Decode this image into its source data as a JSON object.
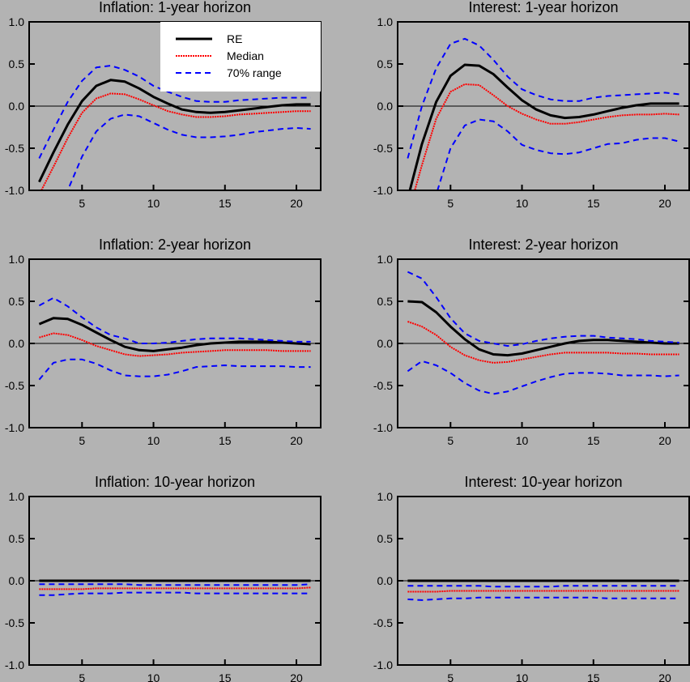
{
  "figure": {
    "background": "#b3b3b3",
    "legend": {
      "placement": "top-right of first panel",
      "entries": [
        {
          "label": "RE",
          "color": "#000000",
          "style": "solid"
        },
        {
          "label": "Median",
          "color": "#ff0000",
          "style": "dotted"
        },
        {
          "label": "70% range",
          "color": "#0000ff",
          "style": "dashed"
        }
      ]
    }
  },
  "chart_data": [
    {
      "type": "line",
      "title": "Inflation: 1-year horizon",
      "xlabel": "",
      "ylabel": "",
      "xlim": [
        1.3,
        21.7
      ],
      "ylim": [
        -1.0,
        1.0
      ],
      "xticks": [
        5,
        10,
        15,
        20
      ],
      "yticks": [
        "1.0",
        "0.5",
        "0.0",
        "-0.5",
        "-1.0"
      ],
      "zero_line": true,
      "x": [
        2,
        3,
        4,
        5,
        6,
        7,
        8,
        9,
        10,
        11,
        12,
        13,
        14,
        15,
        16,
        17,
        18,
        19,
        20,
        21
      ],
      "series": [
        {
          "name": "RE",
          "values": [
            -0.9,
            -0.55,
            -0.22,
            0.06,
            0.24,
            0.31,
            0.29,
            0.21,
            0.11,
            0.03,
            -0.04,
            -0.07,
            -0.08,
            -0.07,
            -0.05,
            -0.03,
            -0.01,
            0.01,
            0.02,
            0.02
          ]
        },
        {
          "name": "Median",
          "values": [
            -1.05,
            -0.72,
            -0.38,
            -0.08,
            0.09,
            0.15,
            0.14,
            0.08,
            0.01,
            -0.06,
            -0.1,
            -0.13,
            -0.13,
            -0.12,
            -0.1,
            -0.09,
            -0.08,
            -0.07,
            -0.06,
            -0.06
          ]
        },
        {
          "name": "70% range upper",
          "values": [
            -0.62,
            -0.28,
            0.05,
            0.3,
            0.46,
            0.48,
            0.43,
            0.35,
            0.24,
            0.17,
            0.11,
            0.06,
            0.05,
            0.05,
            0.07,
            0.08,
            0.09,
            0.1,
            0.1,
            0.1
          ]
        },
        {
          "name": "70% range lower",
          "values": [
            -1.4,
            -1.2,
            -1.0,
            -0.6,
            -0.3,
            -0.15,
            -0.1,
            -0.12,
            -0.2,
            -0.28,
            -0.34,
            -0.37,
            -0.37,
            -0.36,
            -0.34,
            -0.31,
            -0.29,
            -0.27,
            -0.26,
            -0.27
          ]
        }
      ]
    },
    {
      "type": "line",
      "title": "Interest: 1-year horizon",
      "xlabel": "",
      "ylabel": "",
      "xlim": [
        1.3,
        21.7
      ],
      "ylim": [
        -1.0,
        1.0
      ],
      "xticks": [
        5,
        10,
        15,
        20
      ],
      "yticks": [
        "1.0",
        "0.5",
        "0.0",
        "-0.5",
        "-1.0"
      ],
      "zero_line": true,
      "x": [
        2,
        3,
        4,
        5,
        6,
        7,
        8,
        9,
        10,
        11,
        12,
        13,
        14,
        15,
        16,
        17,
        18,
        19,
        20,
        21
      ],
      "series": [
        {
          "name": "RE",
          "values": [
            -1.1,
            -0.45,
            0.05,
            0.36,
            0.49,
            0.48,
            0.38,
            0.22,
            0.07,
            -0.04,
            -0.11,
            -0.14,
            -0.13,
            -0.1,
            -0.06,
            -0.02,
            0.01,
            0.03,
            0.03,
            0.03
          ]
        },
        {
          "name": "Median",
          "values": [
            -1.3,
            -0.7,
            -0.15,
            0.17,
            0.26,
            0.25,
            0.13,
            0.0,
            -0.09,
            -0.16,
            -0.21,
            -0.21,
            -0.19,
            -0.16,
            -0.13,
            -0.11,
            -0.1,
            -0.1,
            -0.09,
            -0.1
          ]
        },
        {
          "name": "70% range upper",
          "values": [
            -0.62,
            0.0,
            0.45,
            0.74,
            0.8,
            0.72,
            0.55,
            0.35,
            0.2,
            0.13,
            0.08,
            0.06,
            0.06,
            0.1,
            0.12,
            0.13,
            0.14,
            0.15,
            0.16,
            0.14
          ]
        },
        {
          "name": "70% range lower",
          "values": [
            -1.6,
            -1.3,
            -1.05,
            -0.5,
            -0.23,
            -0.16,
            -0.18,
            -0.3,
            -0.46,
            -0.52,
            -0.56,
            -0.57,
            -0.55,
            -0.5,
            -0.45,
            -0.44,
            -0.4,
            -0.38,
            -0.38,
            -0.42
          ]
        }
      ]
    },
    {
      "type": "line",
      "title": "Inflation: 2-year horizon",
      "xlabel": "",
      "ylabel": "",
      "xlim": [
        1.3,
        21.7
      ],
      "ylim": [
        -1.0,
        1.0
      ],
      "xticks": [
        5,
        10,
        15,
        20
      ],
      "yticks": [
        "1.0",
        "0.5",
        "0.0",
        "-0.5",
        "-1.0"
      ],
      "zero_line": true,
      "x": [
        2,
        3,
        4,
        5,
        6,
        7,
        8,
        9,
        10,
        11,
        12,
        13,
        14,
        15,
        16,
        17,
        18,
        19,
        20,
        21
      ],
      "series": [
        {
          "name": "RE",
          "values": [
            0.23,
            0.3,
            0.29,
            0.22,
            0.13,
            0.04,
            -0.04,
            -0.08,
            -0.09,
            -0.07,
            -0.05,
            -0.02,
            0.0,
            0.01,
            0.02,
            0.02,
            0.02,
            0.01,
            0.0,
            -0.01
          ]
        },
        {
          "name": "Median",
          "values": [
            0.07,
            0.12,
            0.1,
            0.04,
            -0.03,
            -0.08,
            -0.13,
            -0.15,
            -0.14,
            -0.13,
            -0.11,
            -0.1,
            -0.09,
            -0.08,
            -0.08,
            -0.08,
            -0.08,
            -0.09,
            -0.09,
            -0.09
          ]
        },
        {
          "name": "70% range upper",
          "values": [
            0.45,
            0.54,
            0.44,
            0.31,
            0.19,
            0.1,
            0.06,
            0.0,
            0.0,
            0.01,
            0.03,
            0.05,
            0.06,
            0.06,
            0.06,
            0.05,
            0.04,
            0.03,
            0.02,
            0.02
          ]
        },
        {
          "name": "70% range lower",
          "values": [
            -0.43,
            -0.23,
            -0.19,
            -0.19,
            -0.24,
            -0.32,
            -0.38,
            -0.39,
            -0.39,
            -0.37,
            -0.33,
            -0.28,
            -0.27,
            -0.26,
            -0.27,
            -0.27,
            -0.27,
            -0.27,
            -0.28,
            -0.28
          ]
        }
      ]
    },
    {
      "type": "line",
      "title": "Interest: 2-year horizon",
      "xlabel": "",
      "ylabel": "",
      "xlim": [
        1.3,
        21.7
      ],
      "ylim": [
        -1.0,
        1.0
      ],
      "xticks": [
        5,
        10,
        15,
        20
      ],
      "yticks": [
        "1.0",
        "0.5",
        "0.0",
        "-0.5",
        "-1.0"
      ],
      "zero_line": true,
      "x": [
        2,
        3,
        4,
        5,
        6,
        7,
        8,
        9,
        10,
        11,
        12,
        13,
        14,
        15,
        16,
        17,
        18,
        19,
        20,
        21
      ],
      "series": [
        {
          "name": "RE",
          "values": [
            0.5,
            0.49,
            0.37,
            0.2,
            0.05,
            -0.07,
            -0.13,
            -0.14,
            -0.12,
            -0.08,
            -0.04,
            0.0,
            0.03,
            0.04,
            0.04,
            0.03,
            0.02,
            0.01,
            0.0,
            0.0
          ]
        },
        {
          "name": "Median",
          "values": [
            0.26,
            0.2,
            0.1,
            -0.04,
            -0.14,
            -0.2,
            -0.23,
            -0.22,
            -0.19,
            -0.16,
            -0.13,
            -0.11,
            -0.11,
            -0.11,
            -0.11,
            -0.12,
            -0.12,
            -0.13,
            -0.13,
            -0.13
          ]
        },
        {
          "name": "70% range upper",
          "values": [
            0.85,
            0.77,
            0.55,
            0.3,
            0.12,
            0.03,
            0.0,
            -0.03,
            -0.01,
            0.03,
            0.06,
            0.08,
            0.09,
            0.09,
            0.07,
            0.06,
            0.05,
            0.03,
            0.02,
            0.01
          ]
        },
        {
          "name": "70% range lower",
          "values": [
            -0.33,
            -0.21,
            -0.26,
            -0.35,
            -0.47,
            -0.56,
            -0.6,
            -0.57,
            -0.51,
            -0.45,
            -0.4,
            -0.36,
            -0.35,
            -0.35,
            -0.36,
            -0.38,
            -0.38,
            -0.38,
            -0.39,
            -0.38
          ]
        }
      ]
    },
    {
      "type": "line",
      "title": "Inflation: 10-year horizon",
      "xlabel": "",
      "ylabel": "",
      "xlim": [
        1.3,
        21.7
      ],
      "ylim": [
        -1.0,
        1.0
      ],
      "xticks": [
        5,
        10,
        15,
        20
      ],
      "yticks": [
        "1.0",
        "0.5",
        "0.0",
        "-0.5",
        "-1.0"
      ],
      "zero_line": true,
      "x": [
        2,
        3,
        4,
        5,
        6,
        7,
        8,
        9,
        10,
        11,
        12,
        13,
        14,
        15,
        16,
        17,
        18,
        19,
        20,
        21
      ],
      "series": [
        {
          "name": "RE",
          "values": [
            0,
            0,
            0,
            0,
            0,
            0,
            0,
            0,
            0,
            0,
            0,
            0,
            0,
            0,
            0,
            0,
            0,
            0,
            0,
            0
          ]
        },
        {
          "name": "Median",
          "values": [
            -0.1,
            -0.1,
            -0.1,
            -0.1,
            -0.09,
            -0.09,
            -0.09,
            -0.09,
            -0.09,
            -0.09,
            -0.09,
            -0.09,
            -0.09,
            -0.09,
            -0.09,
            -0.09,
            -0.09,
            -0.09,
            -0.09,
            -0.08
          ]
        },
        {
          "name": "70% range upper",
          "values": [
            -0.04,
            -0.04,
            -0.04,
            -0.04,
            -0.04,
            -0.04,
            -0.04,
            -0.05,
            -0.05,
            -0.05,
            -0.05,
            -0.05,
            -0.05,
            -0.05,
            -0.05,
            -0.05,
            -0.05,
            -0.05,
            -0.05,
            -0.04
          ]
        },
        {
          "name": "70% range lower",
          "values": [
            -0.17,
            -0.17,
            -0.16,
            -0.15,
            -0.15,
            -0.15,
            -0.14,
            -0.14,
            -0.14,
            -0.14,
            -0.14,
            -0.15,
            -0.15,
            -0.15,
            -0.15,
            -0.15,
            -0.15,
            -0.15,
            -0.15,
            -0.15
          ]
        }
      ]
    },
    {
      "type": "line",
      "title": "Interest: 10-year horizon",
      "xlabel": "",
      "ylabel": "",
      "xlim": [
        1.3,
        21.7
      ],
      "ylim": [
        -1.0,
        1.0
      ],
      "xticks": [
        5,
        10,
        15,
        20
      ],
      "yticks": [
        "1.0",
        "0.5",
        "0.0",
        "-0.5",
        "-1.0"
      ],
      "zero_line": true,
      "x": [
        2,
        3,
        4,
        5,
        6,
        7,
        8,
        9,
        10,
        11,
        12,
        13,
        14,
        15,
        16,
        17,
        18,
        19,
        20,
        21
      ],
      "series": [
        {
          "name": "RE",
          "values": [
            0,
            0,
            0,
            0,
            0,
            0,
            0,
            0,
            0,
            0,
            0,
            0,
            0,
            0,
            0,
            0,
            0,
            0,
            0,
            0
          ]
        },
        {
          "name": "Median",
          "values": [
            -0.13,
            -0.13,
            -0.13,
            -0.12,
            -0.12,
            -0.12,
            -0.12,
            -0.12,
            -0.12,
            -0.12,
            -0.12,
            -0.12,
            -0.12,
            -0.12,
            -0.12,
            -0.12,
            -0.12,
            -0.12,
            -0.12,
            -0.12
          ]
        },
        {
          "name": "70% range upper",
          "values": [
            -0.06,
            -0.06,
            -0.06,
            -0.06,
            -0.06,
            -0.06,
            -0.07,
            -0.07,
            -0.07,
            -0.07,
            -0.07,
            -0.06,
            -0.06,
            -0.06,
            -0.06,
            -0.06,
            -0.06,
            -0.06,
            -0.06,
            -0.06
          ]
        },
        {
          "name": "70% range lower",
          "values": [
            -0.22,
            -0.23,
            -0.22,
            -0.21,
            -0.21,
            -0.2,
            -0.2,
            -0.2,
            -0.2,
            -0.2,
            -0.2,
            -0.2,
            -0.2,
            -0.2,
            -0.21,
            -0.21,
            -0.21,
            -0.21,
            -0.21,
            -0.21
          ]
        }
      ]
    }
  ]
}
